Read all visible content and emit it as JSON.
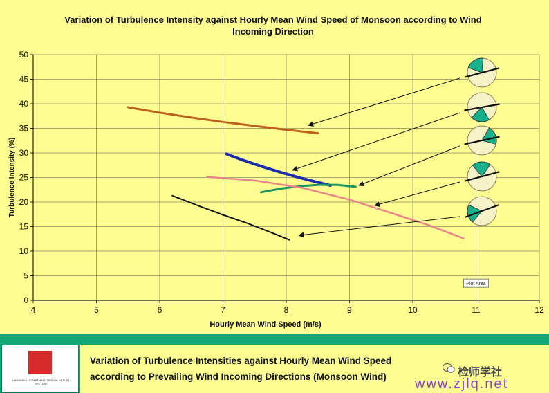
{
  "chart_data": {
    "type": "line",
    "title": "Variation of Turbulence Intensity against Hourly Mean Wind Speed of Monsoon according to Wind Incoming Direction",
    "title_lines": [
      "Variation of Turbulence Intensity against Hourly Mean Wind Speed of Monsoon according to Wind",
      "Incoming Direction"
    ],
    "xlabel": "Hourly Mean Wind Speed (m/s)",
    "ylabel": "Turbulence Intensity (%)",
    "xlim": [
      4,
      12
    ],
    "ylim": [
      0,
      50
    ],
    "xticks": [
      4,
      5,
      6,
      7,
      8,
      9,
      10,
      11,
      12
    ],
    "yticks": [
      0,
      5,
      10,
      15,
      20,
      25,
      30,
      35,
      40,
      45,
      50
    ],
    "grid": true,
    "annotation": "Plot Area",
    "annotation_at": [
      11.0,
      3.5
    ],
    "series": [
      {
        "color": "#c0641e",
        "width": 3,
        "dotted": true,
        "x": [
          5.5,
          6.0,
          6.5,
          7.0,
          7.5,
          8.0,
          8.5
        ],
        "y": [
          39.3,
          38.2,
          37.2,
          36.3,
          35.5,
          34.7,
          34.0
        ],
        "pointer_to": [
          8.35,
          35.6
        ]
      },
      {
        "color": "#1c2db0",
        "width": 4,
        "dotted": true,
        "x": [
          7.05,
          7.3,
          7.6,
          7.9,
          8.2,
          8.5,
          8.7
        ],
        "y": [
          29.8,
          28.6,
          27.3,
          26.1,
          25.0,
          24.0,
          23.4
        ],
        "pointer_to": [
          8.1,
          26.5
        ]
      },
      {
        "color": "#1e9a62",
        "width": 3,
        "dotted": true,
        "x": [
          7.6,
          7.9,
          8.2,
          8.5,
          8.8,
          9.1
        ],
        "y": [
          22.0,
          22.7,
          23.2,
          23.5,
          23.5,
          23.1
        ],
        "pointer_to": [
          9.15,
          23.4
        ]
      },
      {
        "color": "#e8858a",
        "width": 2.5,
        "dotted": false,
        "x": [
          6.75,
          7.5,
          8.25,
          9.0,
          9.75,
          10.25,
          10.8
        ],
        "y": [
          25.1,
          24.4,
          22.9,
          20.5,
          17.4,
          15.3,
          12.6
        ],
        "pointer_to": [
          9.4,
          19.3
        ]
      },
      {
        "color": "#141414",
        "width": 2,
        "dotted": false,
        "x": [
          6.2,
          6.6,
          7.0,
          7.4,
          7.8,
          8.05
        ],
        "y": [
          21.3,
          19.3,
          17.4,
          15.6,
          13.6,
          12.3
        ],
        "pointer_to": [
          8.2,
          13.2
        ]
      }
    ]
  },
  "footer": {
    "lines": [
      "Variation of Turbulence Intensities against Hourly Mean Wind Speed",
      "according to Prevailing Wind Incoming Directions  (Monsoon Wind)"
    ],
    "logo_caption": "HIGHWAYS DEPARTMENT BRIDGE HEALTH SECTION"
  },
  "watermark": {
    "text": "检师学社",
    "url": "www.zjlq.net"
  },
  "colors": {
    "plot_bg": "#fdfd92",
    "footer_bg": "#16a777",
    "wedge": "#1bb08c"
  }
}
